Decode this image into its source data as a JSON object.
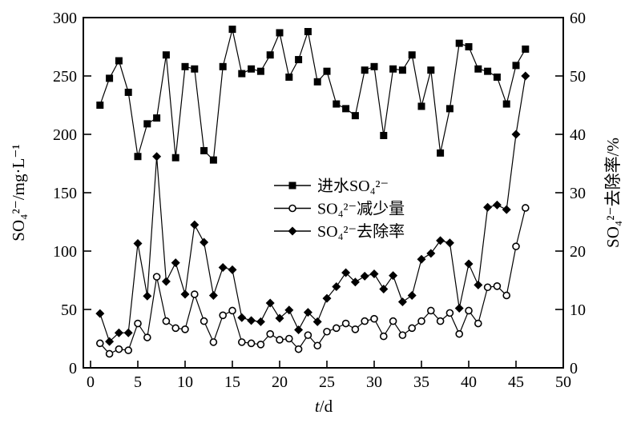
{
  "figure": {
    "background": "#ffffff",
    "line_color": "#000000"
  },
  "chart_data": {
    "type": "line",
    "title": "",
    "xlabel_italic": "t",
    "xlabel_rest": "/d",
    "ylabel_left": "SO₄²⁻/mg·L⁻¹",
    "ylabel_right": "SO₄²⁻去除率/%",
    "xlim": [
      -1,
      50
    ],
    "ylim_left": [
      0,
      300
    ],
    "ylim_right": [
      0,
      60
    ],
    "x_ticks": [
      0,
      5,
      10,
      15,
      20,
      25,
      30,
      35,
      40,
      45,
      50
    ],
    "left_ticks": [
      0,
      50,
      100,
      150,
      200,
      250,
      300
    ],
    "right_ticks": [
      0,
      10,
      20,
      30,
      40,
      50,
      60
    ],
    "grid": false,
    "legend_position": "center",
    "x": [
      1,
      2,
      3,
      4,
      5,
      6,
      7,
      8,
      9,
      10,
      11,
      12,
      13,
      14,
      15,
      16,
      17,
      18,
      19,
      20,
      21,
      22,
      23,
      24,
      25,
      26,
      27,
      28,
      29,
      30,
      31,
      32,
      33,
      34,
      35,
      36,
      37,
      38,
      39,
      40,
      41,
      42,
      43,
      44,
      45,
      46
    ],
    "series": [
      {
        "name": "进水SO₄²⁻",
        "marker": "square",
        "axis": "left",
        "values": [
          225,
          248,
          263,
          236,
          181,
          209,
          214,
          268,
          180,
          258,
          256,
          186,
          178,
          258,
          290,
          252,
          256,
          254,
          268,
          287,
          249,
          264,
          288,
          245,
          254,
          226,
          222,
          216,
          255,
          258,
          199,
          256,
          255,
          268,
          224,
          255,
          184,
          222,
          278,
          275,
          256,
          254,
          249,
          226,
          259,
          273
        ]
      },
      {
        "name": "SO₄²⁻减少量",
        "marker": "circle",
        "axis": "left",
        "values": [
          21,
          12,
          16,
          15,
          38,
          26,
          78,
          40,
          34,
          33,
          63,
          40,
          22,
          45,
          49,
          22,
          21,
          20,
          29,
          24,
          25,
          16,
          28,
          19,
          31,
          34,
          38,
          33,
          40,
          42,
          27,
          40,
          28,
          34,
          40,
          49,
          40,
          47,
          29,
          49,
          38,
          69,
          70,
          62,
          104,
          137
        ]
      },
      {
        "name": "SO₄²⁻去除率",
        "marker": "diamond",
        "axis": "right",
        "values": [
          9.3,
          4.5,
          6,
          6,
          21.3,
          12.3,
          36.2,
          14.8,
          18,
          12.6,
          24.5,
          21.5,
          12.4,
          17.2,
          16.8,
          8.6,
          8.1,
          7.9,
          11.1,
          8.5,
          9.9,
          6.5,
          9.5,
          7.9,
          11.9,
          13.9,
          16.3,
          14.7,
          15.7,
          16.1,
          13.5,
          15.8,
          11.3,
          12.4,
          18.6,
          19.6,
          21.8,
          21.4,
          10.2,
          17.8,
          14.2,
          27.5,
          27.9,
          27.1,
          40,
          50
        ]
      }
    ]
  }
}
